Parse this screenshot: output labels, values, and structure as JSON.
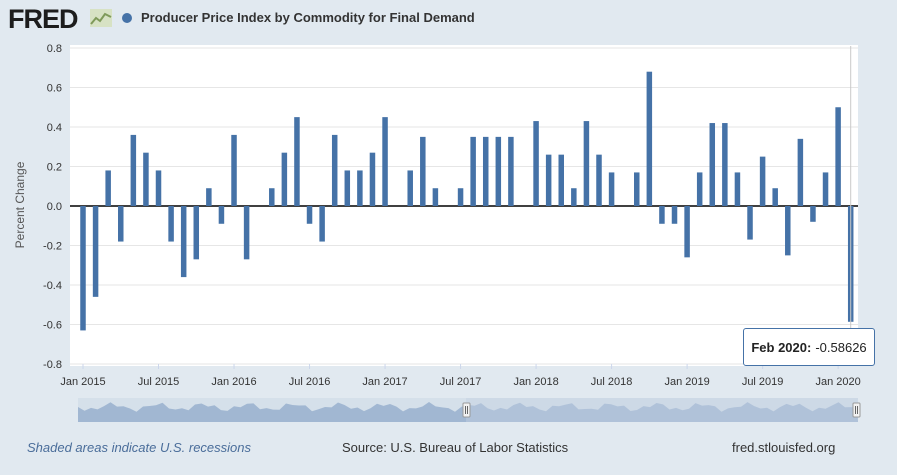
{
  "header": {
    "logo_text": "FRED",
    "legend_label": "Producer Price Index by Commodity for Final Demand"
  },
  "colors": {
    "series": "#4572a7",
    "background": "#e1e9f0",
    "plot_bg": "#ffffff",
    "navigator_fill": "#9bb3cf",
    "navigator_selected": "#c3d1e3"
  },
  "icons": {
    "logo_mark": "chart-line-icon",
    "legend_marker": "circle-icon",
    "navigator_handles": "handle-icon"
  },
  "tooltip": {
    "date": "Feb 2020:",
    "value": "-0.58626"
  },
  "footer": {
    "recession_note": "Shaded areas indicate U.S. recessions",
    "source": "Source: U.S. Bureau of Labor Statistics",
    "site": "fred.stlouisfed.org"
  },
  "chart_data": {
    "type": "bar",
    "ylabel": "Percent Change",
    "ylim": [
      -0.8,
      0.8
    ],
    "yticks": [
      "0.8",
      "0.6",
      "0.4",
      "0.2",
      "0.0",
      "-0.2",
      "-0.4",
      "-0.6",
      "-0.8"
    ],
    "xticks": [
      "Jan 2015",
      "Jul 2015",
      "Jan 2016",
      "Jul 2016",
      "Jan 2017",
      "Jul 2017",
      "Jan 2018",
      "Jul 2018",
      "Jan 2019",
      "Jul 2019",
      "Jan 2020"
    ],
    "grid": true,
    "series": [
      {
        "name": "Producer Price Index by Commodity for Final Demand",
        "start": "Jan 2015",
        "values": [
          -0.63,
          -0.46,
          0.18,
          -0.18,
          0.36,
          0.27,
          0.18,
          -0.18,
          -0.36,
          -0.27,
          0.09,
          -0.09,
          0.36,
          -0.27,
          0.0,
          0.09,
          0.27,
          0.45,
          -0.09,
          -0.18,
          0.36,
          0.18,
          0.18,
          0.27,
          0.45,
          0.0,
          0.18,
          0.35,
          0.09,
          0.0,
          0.09,
          0.35,
          0.35,
          0.35,
          0.35,
          0.0,
          0.43,
          0.26,
          0.26,
          0.09,
          0.43,
          0.26,
          0.17,
          0.0,
          0.17,
          0.68,
          -0.09,
          -0.09,
          -0.26,
          0.17,
          0.42,
          0.42,
          0.17,
          -0.17,
          0.25,
          0.09,
          -0.25,
          0.34,
          -0.08,
          0.17,
          0.5,
          -0.58626
        ]
      }
    ]
  }
}
